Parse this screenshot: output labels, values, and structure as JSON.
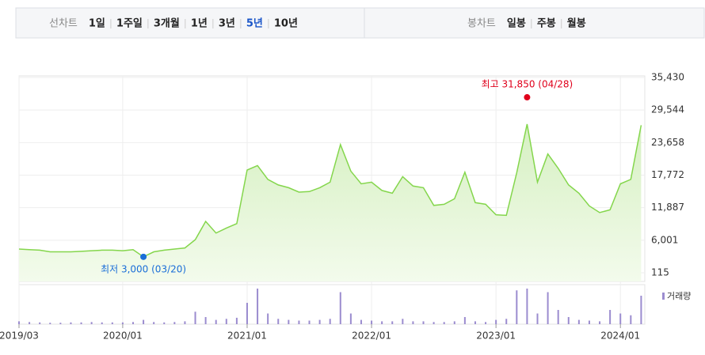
{
  "header": {
    "line_label": "선차트",
    "periods": [
      "1일",
      "1주일",
      "3개월",
      "1년",
      "3년",
      "5년",
      "10년"
    ],
    "selected_period": 5,
    "candle_label": "봉차트",
    "candles": [
      "일봉",
      "주봉",
      "월봉"
    ]
  },
  "chart_data": {
    "type": "line",
    "color": "#84d64c",
    "grid": true,
    "categories": [
      "2019/03",
      null,
      null,
      null,
      null,
      null,
      null,
      null,
      null,
      null,
      "2020/01",
      null,
      null,
      null,
      null,
      null,
      null,
      null,
      null,
      null,
      null,
      null,
      "2021/01",
      null,
      null,
      null,
      null,
      null,
      null,
      null,
      null,
      null,
      null,
      null,
      "2022/01",
      null,
      null,
      null,
      null,
      null,
      null,
      null,
      null,
      null,
      null,
      null,
      "2023/01",
      null,
      null,
      null,
      null,
      null,
      null,
      null,
      null,
      null,
      null,
      null,
      "2024/01",
      null,
      null
    ],
    "values": [
      4400,
      4300,
      4200,
      3900,
      3900,
      3900,
      4000,
      4100,
      4200,
      4200,
      4100,
      4300,
      3000,
      3900,
      4200,
      4400,
      4600,
      6100,
      9400,
      7300,
      8200,
      9000,
      18700,
      19500,
      17000,
      16000,
      15500,
      14700,
      14800,
      15500,
      16500,
      23300,
      18500,
      16200,
      16500,
      15000,
      14500,
      17500,
      15800,
      15500,
      12300,
      12500,
      13500,
      18300,
      12800,
      12500,
      10600,
      10500,
      18200,
      27000,
      16500,
      21600,
      19000,
      16000,
      14500,
      12200,
      11000,
      11500,
      16200,
      17000,
      26800
    ],
    "ylim": [
      115,
      35430
    ],
    "yticks": [
      115,
      {
        "value": 6001,
        "label": "6,001"
      },
      {
        "value": 11887,
        "label": "11,887"
      },
      {
        "value": 17772,
        "label": "17,772"
      },
      {
        "value": 23658,
        "label": "23,658"
      },
      {
        "value": 29544,
        "label": "29,544"
      },
      {
        "value": 35430,
        "label": "35,430"
      }
    ],
    "high": {
      "value": 31850,
      "label": "최고 31,850 (04/28)",
      "color": "#e0001b"
    },
    "low": {
      "value": 3000,
      "label": "최저 3,000 (03/20)",
      "color": "#1a6ed8"
    },
    "volume": {
      "name": "거래량",
      "color": "#9b8ccf",
      "values": [
        8,
        6,
        5,
        4,
        4,
        5,
        5,
        6,
        5,
        5,
        5,
        6,
        12,
        6,
        5,
        6,
        8,
        35,
        20,
        12,
        15,
        18,
        60,
        100,
        30,
        15,
        12,
        10,
        10,
        12,
        15,
        90,
        30,
        12,
        10,
        8,
        8,
        15,
        8,
        8,
        6,
        6,
        8,
        20,
        8,
        6,
        12,
        15,
        95,
        100,
        30,
        90,
        40,
        20,
        12,
        10,
        8,
        40,
        30,
        25,
        80
      ]
    }
  }
}
